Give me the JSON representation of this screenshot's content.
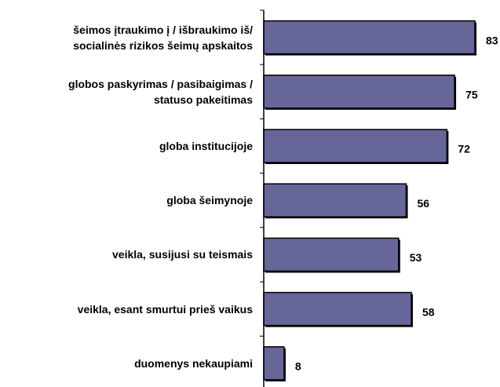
{
  "chart_data": {
    "type": "bar",
    "orientation": "horizontal",
    "categories": [
      "šeimos įtraukimo į / išbraukimo iš/\nsocialinės rizikos šeimų apskaitos",
      "globos paskyrimas / pasibaigimas /\nstatuso pakeitimas",
      "globa institucijoje",
      "globa šeimynoje",
      "veikla, susijusi su teismais",
      "veikla, esant smurtui prieš vaikus",
      "duomenys nekaupiami"
    ],
    "values": [
      83,
      75,
      72,
      56,
      53,
      58,
      8
    ],
    "color": "#666699"
  }
}
